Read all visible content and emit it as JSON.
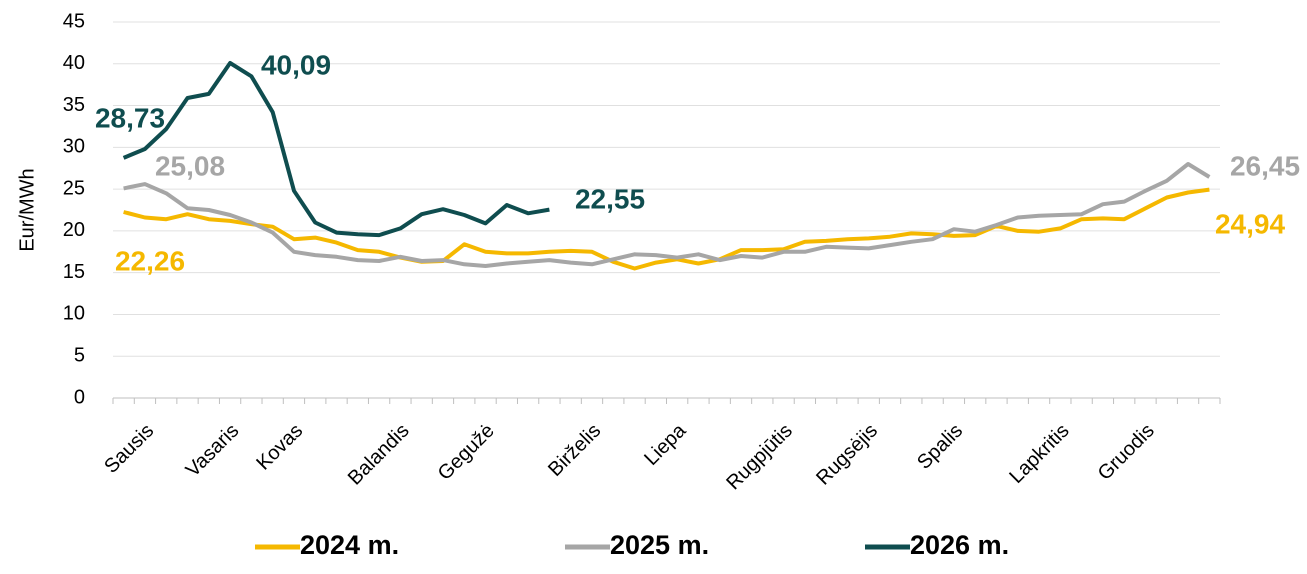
{
  "chart_data": {
    "type": "line",
    "y_label": "Eur/MWh",
    "categories": [
      null,
      "Sausis",
      null,
      null,
      null,
      "Vasaris",
      null,
      null,
      "Kovas",
      null,
      null,
      null,
      null,
      "Balandis",
      null,
      null,
      null,
      "Gegužė",
      null,
      null,
      null,
      null,
      "Birželis",
      null,
      null,
      null,
      "Liepa",
      null,
      null,
      null,
      null,
      "Rugpjūtis",
      null,
      null,
      null,
      "Rugsėjis",
      null,
      null,
      null,
      "Spalis",
      null,
      null,
      null,
      null,
      "Lapkritis",
      null,
      null,
      null,
      "Gruodis",
      null,
      null,
      null
    ],
    "series": [
      {
        "name": "2024 m.",
        "color": "#f5b800",
        "values": [
          22.26,
          21.6,
          21.4,
          22.0,
          21.4,
          21.2,
          20.8,
          20.5,
          19.0,
          19.2,
          18.6,
          17.7,
          17.5,
          16.8,
          16.3,
          16.4,
          18.4,
          17.5,
          17.3,
          17.3,
          17.5,
          17.6,
          17.5,
          16.3,
          15.5,
          16.2,
          16.6,
          16.1,
          16.6,
          17.7,
          17.7,
          17.8,
          18.7,
          18.8,
          19.0,
          19.1,
          19.3,
          19.7,
          19.6,
          19.4,
          19.5,
          20.6,
          20.0,
          19.9,
          20.3,
          21.4,
          21.5,
          21.4,
          22.7,
          24.0,
          24.6,
          24.94
        ],
        "value_labels": [
          "22,26",
          null,
          null,
          null,
          null,
          null,
          null,
          null,
          null,
          null,
          null,
          null,
          null,
          null,
          null,
          null,
          null,
          null,
          null,
          null,
          null,
          null,
          null,
          null,
          null,
          null,
          null,
          null,
          null,
          null,
          null,
          null,
          null,
          null,
          null,
          null,
          null,
          null,
          null,
          null,
          null,
          null,
          null,
          null,
          null,
          null,
          null,
          null,
          null,
          null,
          null,
          "24,94"
        ]
      },
      {
        "name": "2025 m.",
        "color": "#a6a6a6",
        "values": [
          25.08,
          25.6,
          24.5,
          22.7,
          22.5,
          21.9,
          21.0,
          19.8,
          17.5,
          17.1,
          16.9,
          16.5,
          16.4,
          16.9,
          16.4,
          16.5,
          16.0,
          15.8,
          16.1,
          16.3,
          16.5,
          16.2,
          16.0,
          16.6,
          17.2,
          17.1,
          16.8,
          17.2,
          16.5,
          17.0,
          16.8,
          17.5,
          17.5,
          18.1,
          18.0,
          17.9,
          18.3,
          18.7,
          19.0,
          20.2,
          19.9,
          20.7,
          21.6,
          21.8,
          21.9,
          22.0,
          23.2,
          23.5,
          24.8,
          26.0,
          28.0,
          26.45
        ],
        "value_labels": [
          "25,08",
          null,
          null,
          null,
          null,
          null,
          null,
          null,
          null,
          null,
          null,
          null,
          null,
          null,
          null,
          null,
          null,
          null,
          null,
          null,
          null,
          null,
          null,
          null,
          null,
          null,
          null,
          null,
          null,
          null,
          null,
          null,
          null,
          null,
          null,
          null,
          null,
          null,
          null,
          null,
          null,
          null,
          null,
          null,
          null,
          null,
          null,
          null,
          null,
          null,
          null,
          "26,45"
        ]
      },
      {
        "name": "2026 m.",
        "color": "#0f4d4f",
        "values": [
          28.73,
          29.8,
          32.2,
          35.9,
          36.4,
          40.09,
          38.5,
          34.2,
          24.8,
          21.0,
          19.8,
          19.6,
          19.5,
          20.3,
          22.0,
          22.6,
          21.9,
          20.9,
          23.1,
          22.1,
          22.55,
          null,
          null,
          null,
          null,
          null,
          null,
          null,
          null,
          null,
          null,
          null,
          null,
          null,
          null,
          null,
          null,
          null,
          null,
          null,
          null,
          null,
          null,
          null,
          null,
          null,
          null,
          null,
          null,
          null,
          null,
          null
        ],
        "value_labels": [
          "28,73",
          null,
          null,
          null,
          null,
          "40,09",
          null,
          null,
          null,
          null,
          null,
          null,
          null,
          null,
          null,
          null,
          null,
          null,
          null,
          null,
          "22,55",
          null,
          null,
          null,
          null,
          null,
          null,
          null,
          null,
          null,
          null,
          null,
          null,
          null,
          null,
          null,
          null,
          null,
          null,
          null,
          null,
          null,
          null,
          null,
          null,
          null,
          null,
          null,
          null,
          null,
          null,
          null
        ]
      }
    ],
    "ylim": [
      0,
      45
    ],
    "yticks": [
      0,
      5,
      10,
      15,
      20,
      25,
      30,
      35,
      40,
      45
    ],
    "grid": true,
    "legend": "bottom"
  }
}
